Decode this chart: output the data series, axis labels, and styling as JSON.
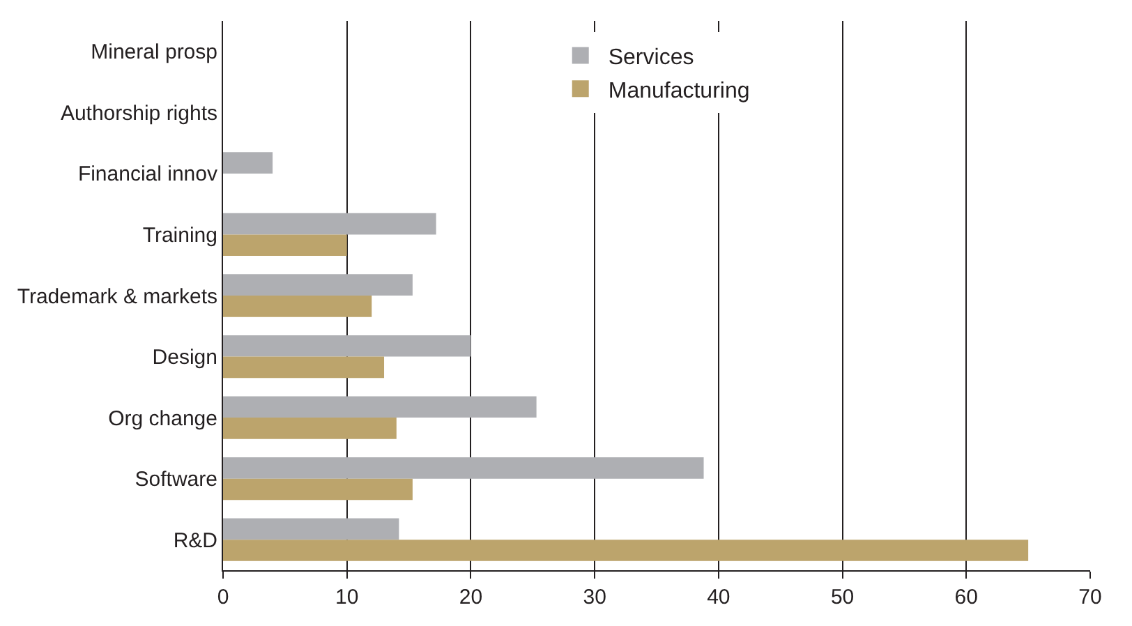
{
  "chart_data": {
    "type": "bar",
    "orientation": "horizontal",
    "categories": [
      "Mineral prosp",
      "Authorship rights",
      "Financial innov",
      "Training",
      "Trademark & markets",
      "Design",
      "Org change",
      "Software",
      "R&D"
    ],
    "series": [
      {
        "name": "Services",
        "color": "#aeafb3",
        "values": [
          null,
          null,
          4.0,
          17.2,
          15.3,
          20.0,
          25.3,
          38.8,
          14.2
        ]
      },
      {
        "name": "Manufacturing",
        "color": "#bca46c",
        "values": [
          null,
          null,
          null,
          10.0,
          12.0,
          13.0,
          14.0,
          15.3,
          65.0
        ]
      }
    ],
    "xlim": [
      0,
      70
    ],
    "xticks": [
      0,
      10,
      20,
      30,
      40,
      50,
      60,
      70
    ],
    "grid": "x",
    "legend": "top right"
  }
}
